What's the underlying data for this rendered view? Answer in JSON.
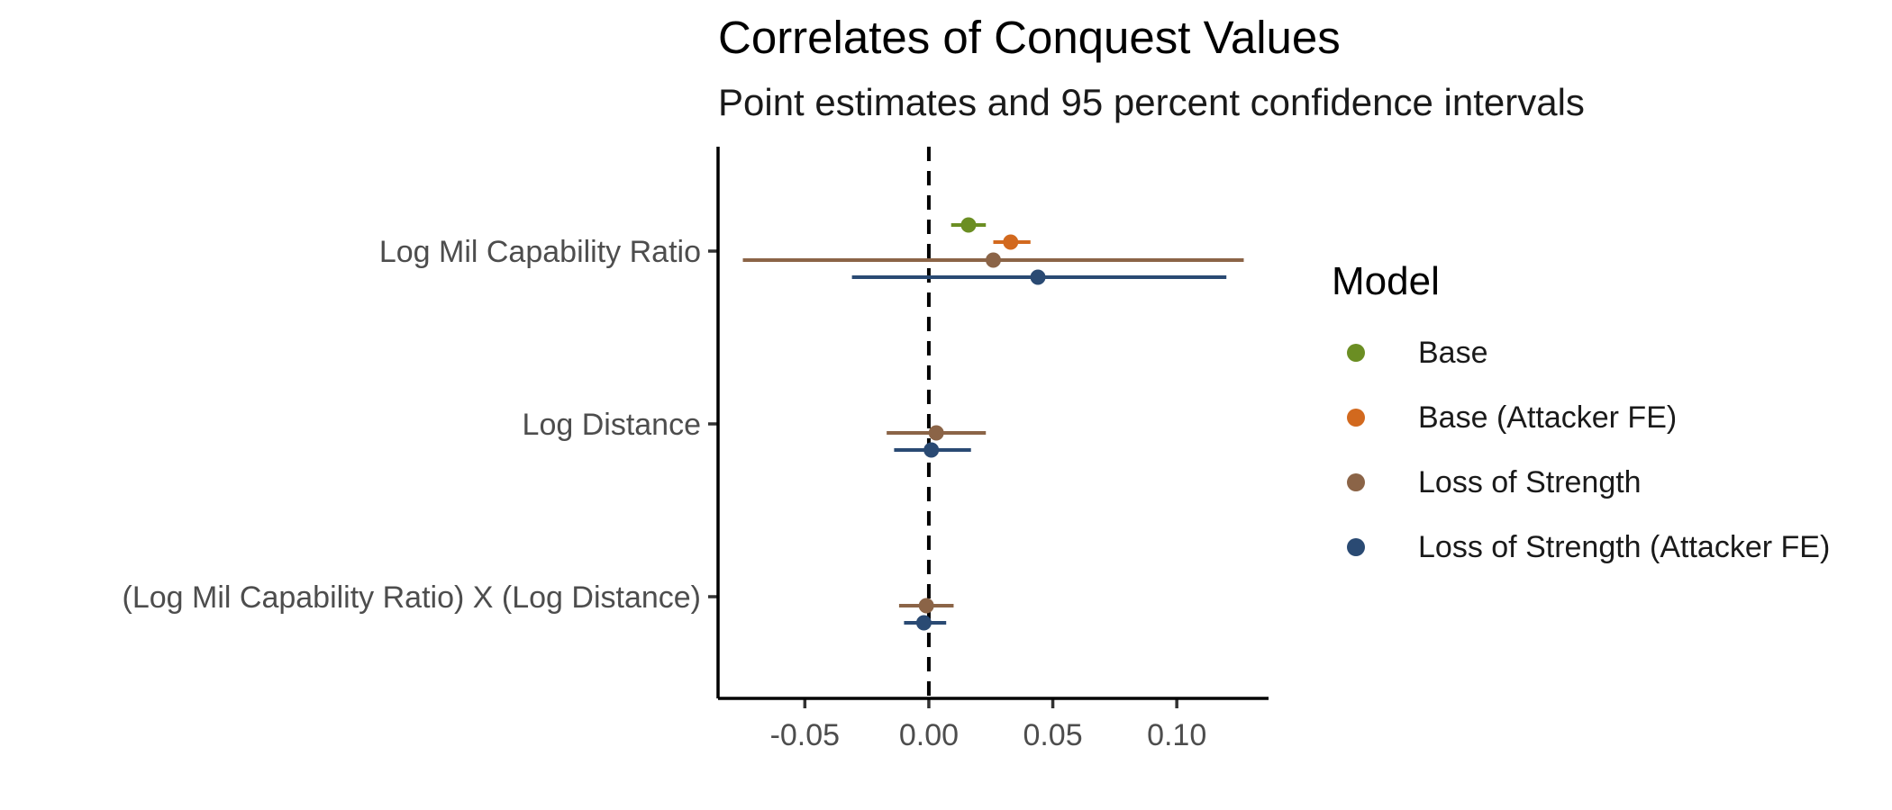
{
  "chart_data": {
    "type": "scatter",
    "title": "Correlates of Conquest Values",
    "subtitle": "Point estimates and 95 percent confidence intervals",
    "xlabel": "",
    "ylabel": "",
    "xlim": [
      -0.085,
      0.137
    ],
    "x_ticks": [
      -0.05,
      0.0,
      0.05,
      0.1
    ],
    "x_tick_labels": [
      "-0.05",
      "0.00",
      "0.05",
      "0.10"
    ],
    "reference_line": 0,
    "grid": false,
    "categories": [
      "Log Mil Capability Ratio",
      "Log Distance",
      "(Log Mil Capability Ratio) X (Log Distance)"
    ],
    "legend": {
      "title": "Model",
      "position": "right"
    },
    "series": [
      {
        "name": "Base",
        "color": "#6b8e23",
        "points": [
          {
            "category": "Log Mil Capability Ratio",
            "estimate": 0.016,
            "lower": 0.009,
            "upper": 0.023
          }
        ]
      },
      {
        "name": "Base (Attacker FE)",
        "color": "#d2691e",
        "points": [
          {
            "category": "Log Mil Capability Ratio",
            "estimate": 0.033,
            "lower": 0.026,
            "upper": 0.041
          }
        ]
      },
      {
        "name": "Loss of Strength",
        "color": "#8b6447",
        "points": [
          {
            "category": "Log Mil Capability Ratio",
            "estimate": 0.026,
            "lower": -0.075,
            "upper": 0.127
          },
          {
            "category": "Log Distance",
            "estimate": 0.003,
            "lower": -0.017,
            "upper": 0.023
          },
          {
            "category": "(Log Mil Capability Ratio) X (Log Distance)",
            "estimate": -0.001,
            "lower": -0.012,
            "upper": 0.01
          }
        ]
      },
      {
        "name": "Loss of Strength (Attacker FE)",
        "color": "#2a4a73",
        "points": [
          {
            "category": "Log Mil Capability Ratio",
            "estimate": 0.044,
            "lower": -0.031,
            "upper": 0.12
          },
          {
            "category": "Log Distance",
            "estimate": 0.001,
            "lower": -0.014,
            "upper": 0.017
          },
          {
            "category": "(Log Mil Capability Ratio) X (Log Distance)",
            "estimate": -0.002,
            "lower": -0.01,
            "upper": 0.007
          }
        ]
      }
    ]
  }
}
